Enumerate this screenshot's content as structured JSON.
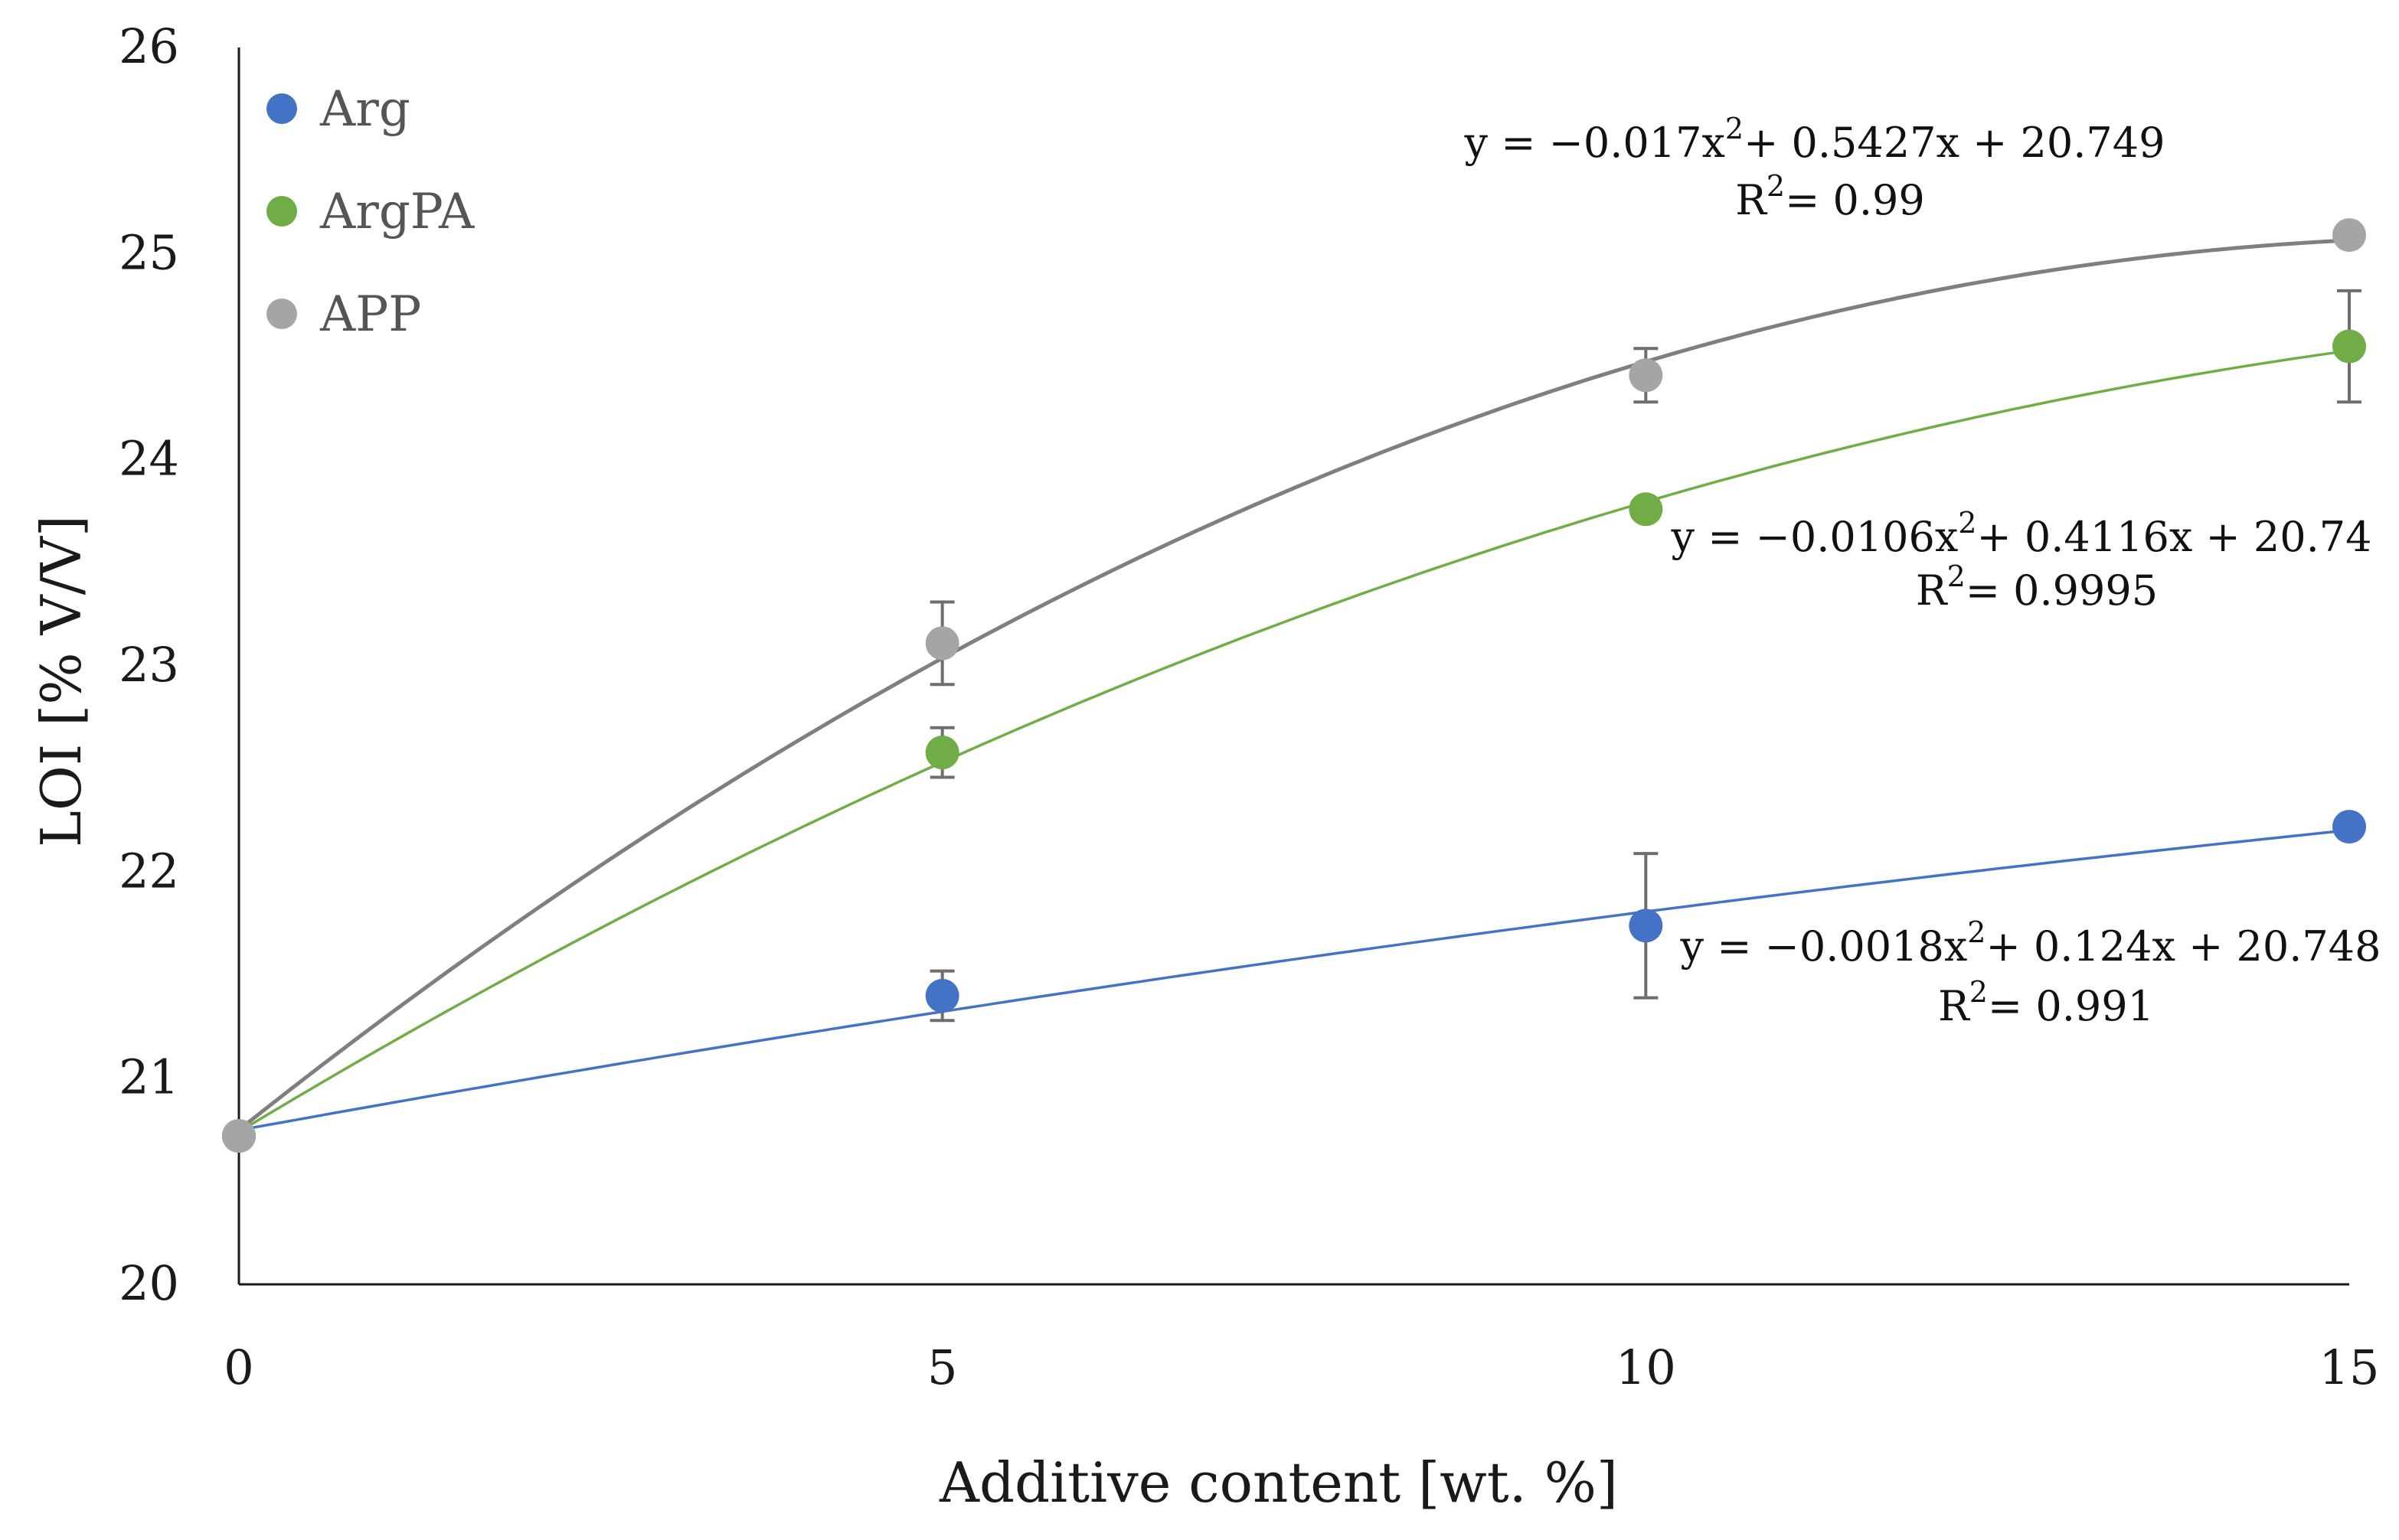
{
  "chart_data": {
    "type": "scatter",
    "xlabel": "Additive content [wt. %]",
    "ylabel": "LOI [% V/V]",
    "xlim": [
      0,
      15
    ],
    "ylim": [
      20,
      26
    ],
    "xticks": [
      0,
      5,
      10,
      15
    ],
    "yticks": [
      20,
      21,
      22,
      23,
      24,
      25,
      26
    ],
    "legend_position": "top-left",
    "series": [
      {
        "name": "Arg",
        "color": "#4472c4",
        "x": [
          0,
          5,
          10,
          15
        ],
        "y": [
          20.72,
          21.4,
          21.74,
          22.22
        ],
        "err": [
          0,
          0.12,
          0.35,
          0
        ],
        "fit": {
          "a": -0.0018,
          "b": 0.124,
          "c": 20.748
        },
        "equation_prefix": "y = −0.0018x",
        "equation_suffix": "+ 0.124x + 20.748",
        "r2_label": "R",
        "r2_value": "= 0.991"
      },
      {
        "name": "ArgPA",
        "color": "#70ad47",
        "x": [
          0,
          5,
          10,
          15
        ],
        "y": [
          20.72,
          22.58,
          23.76,
          24.55
        ],
        "err": [
          0,
          0.12,
          0,
          0.27
        ],
        "fit": {
          "a": -0.0106,
          "b": 0.4116,
          "c": 20.74
        },
        "equation_prefix": "y = −0.0106x",
        "equation_suffix": "+ 0.4116x + 20.74",
        "r2_label": "R",
        "r2_value": "= 0.9995"
      },
      {
        "name": "APP",
        "color": "#a5a5a5",
        "line_color": "#7f7f7f",
        "x": [
          0,
          5,
          10,
          15
        ],
        "y": [
          20.72,
          23.11,
          24.41,
          25.09
        ],
        "err": [
          0,
          0.2,
          0.13,
          0
        ],
        "fit": {
          "a": -0.017,
          "b": 0.5427,
          "c": 20.749
        },
        "equation_prefix": "y = −0.017x",
        "equation_suffix": "+ 0.5427x + 20.749",
        "r2_label": "R",
        "r2_value": "= 0.99"
      }
    ]
  }
}
